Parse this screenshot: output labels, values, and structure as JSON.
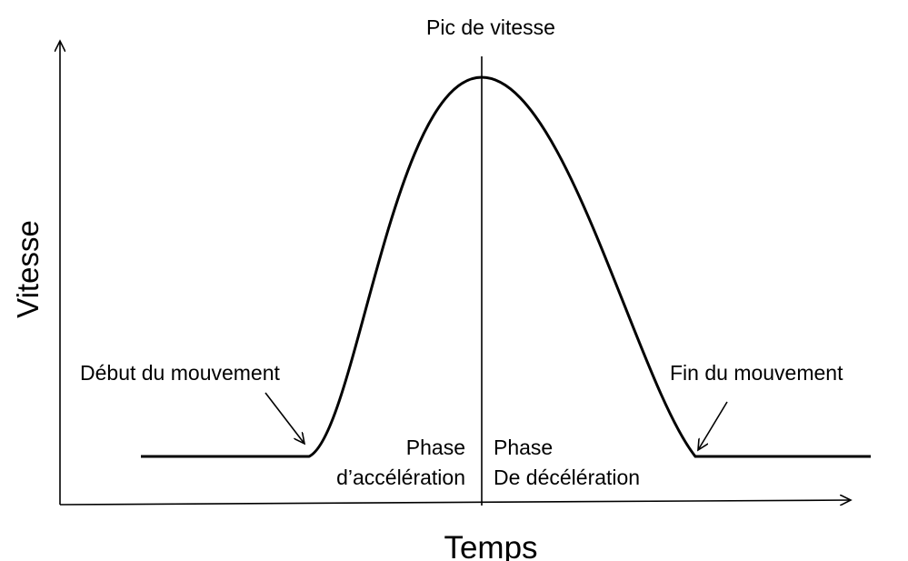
{
  "title": "Pic de vitesse",
  "y_axis_label": "Vitesse",
  "x_axis_label": "Temps",
  "annotations": {
    "start": "Début du mouvement",
    "end": "Fin du mouvement"
  },
  "phases": [
    {
      "line1": "Phase",
      "line2": "d’accélération"
    },
    {
      "line1": "Phase",
      "line2": "De décélération"
    }
  ]
}
